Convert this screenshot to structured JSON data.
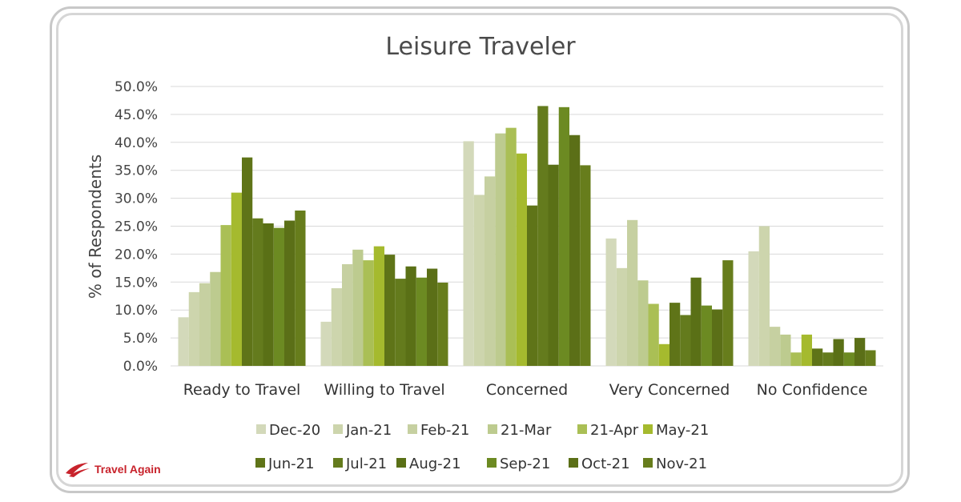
{
  "chart_data": {
    "type": "bar",
    "title": "Leisure Traveler",
    "ylabel": "% of Respondents",
    "xlabel": "",
    "ylim": [
      0,
      50
    ],
    "yticks": [
      "0.0%",
      "5.0%",
      "10.0%",
      "15.0%",
      "20.0%",
      "25.0%",
      "30.0%",
      "35.0%",
      "40.0%",
      "45.0%",
      "50.0%"
    ],
    "grid": true,
    "legend_position": "bottom",
    "categories": [
      "Ready to Travel",
      "Willing to Travel",
      "Concerned",
      "Very Concerned",
      "No Confidence"
    ],
    "series": [
      {
        "name": "Dec-20",
        "color": "#d3d9ba",
        "values": [
          8.7,
          7.9,
          40.2,
          22.8,
          20.5
        ]
      },
      {
        "name": "Jan-21",
        "color": "#cdd5ad",
        "values": [
          13.2,
          13.9,
          30.6,
          17.5,
          25.0
        ]
      },
      {
        "name": "Feb-21",
        "color": "#c6d0a1",
        "values": [
          14.8,
          18.2,
          33.9,
          26.1,
          7.0
        ]
      },
      {
        "name": "21-Mar",
        "color": "#bdcb8f",
        "values": [
          16.8,
          20.8,
          41.6,
          15.3,
          5.6
        ]
      },
      {
        "name": "21-Apr",
        "color": "#aabf55",
        "values": [
          25.2,
          18.9,
          42.6,
          11.1,
          2.4
        ]
      },
      {
        "name": "May-21",
        "color": "#a5ba2e",
        "values": [
          31.0,
          21.4,
          38.0,
          3.9,
          5.6
        ]
      },
      {
        "name": "Jun-21",
        "color": "#5f7418",
        "values": [
          37.3,
          19.9,
          28.7,
          11.3,
          3.1
        ]
      },
      {
        "name": "Jul-21",
        "color": "#647b1d",
        "values": [
          26.4,
          15.6,
          46.5,
          9.1,
          2.4
        ]
      },
      {
        "name": "Aug-21",
        "color": "#5a7016",
        "values": [
          25.5,
          17.8,
          36.0,
          15.8,
          4.8
        ]
      },
      {
        "name": "Sep-21",
        "color": "#6c8a22",
        "values": [
          24.7,
          15.8,
          46.3,
          10.8,
          2.4
        ]
      },
      {
        "name": "Oct-21",
        "color": "#5b6f17",
        "values": [
          26.0,
          17.4,
          41.3,
          10.1,
          5.0
        ]
      },
      {
        "name": "Nov-21",
        "color": "#677d1c",
        "values": [
          27.8,
          14.9,
          35.9,
          18.9,
          2.8
        ]
      }
    ]
  },
  "brand": {
    "text": "Travel Again",
    "color": "#c8232c"
  }
}
